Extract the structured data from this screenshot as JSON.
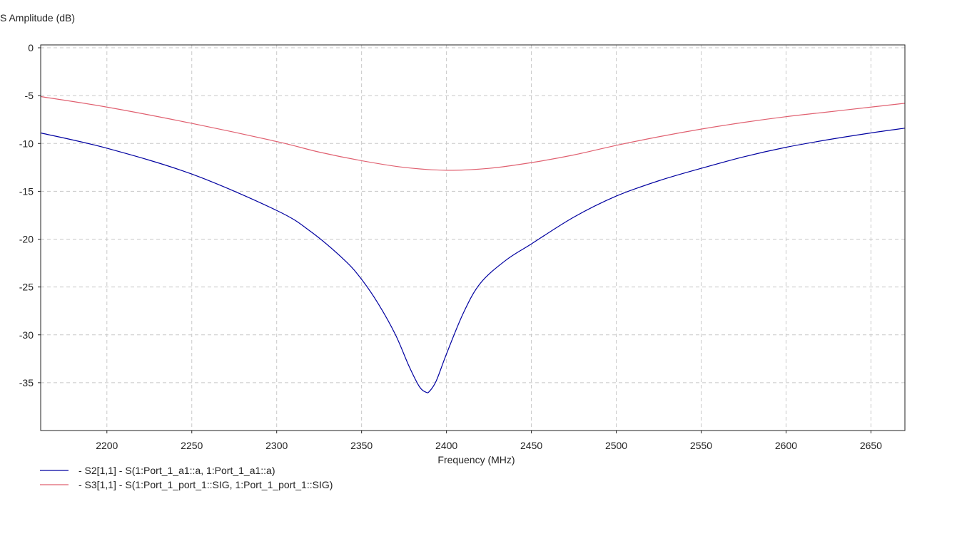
{
  "chart_data": {
    "type": "line",
    "xlabel": "Frequency (MHz)",
    "ylabel": "S Amplitude (dB)",
    "xlim": [
      2161,
      2670
    ],
    "ylim": [
      -40,
      0.3
    ],
    "xticks": [
      2200,
      2250,
      2300,
      2350,
      2400,
      2450,
      2500,
      2550,
      2600,
      2650
    ],
    "yticks": [
      0,
      -5,
      -10,
      -15,
      -20,
      -25,
      -30,
      -35
    ],
    "grid": true,
    "legend_position": "bottom-left",
    "series": [
      {
        "name": "S2[1,1] - S(1:Port_1_a1::a, 1:Port_1_a1::a)",
        "color": "#0000a0",
        "x": [
          2161,
          2200,
          2250,
          2300,
          2320,
          2340,
          2350,
          2360,
          2370,
          2378,
          2384,
          2388,
          2390,
          2394,
          2400,
          2410,
          2420,
          2435,
          2450,
          2475,
          2500,
          2525,
          2550,
          2575,
          2600,
          2625,
          2650,
          2670
        ],
        "y": [
          -8.9,
          -10.5,
          -13.2,
          -17.0,
          -19.2,
          -22.2,
          -24.2,
          -26.8,
          -30.0,
          -33.3,
          -35.4,
          -36.0,
          -35.9,
          -34.8,
          -32.0,
          -27.7,
          -24.6,
          -22.2,
          -20.5,
          -17.7,
          -15.5,
          -13.9,
          -12.6,
          -11.4,
          -10.4,
          -9.6,
          -8.9,
          -8.4
        ]
      },
      {
        "name": "S3[1,1] - S(1:Port_1_port_1::SIG, 1:Port_1_port_1::SIG)",
        "color": "#e06070",
        "x": [
          2161,
          2200,
          2250,
          2300,
          2325,
          2350,
          2375,
          2400,
          2425,
          2450,
          2475,
          2500,
          2525,
          2550,
          2575,
          2600,
          2625,
          2650,
          2670
        ],
        "y": [
          -5.1,
          -6.2,
          -7.9,
          -9.8,
          -10.9,
          -11.8,
          -12.5,
          -12.8,
          -12.6,
          -12.0,
          -11.2,
          -10.2,
          -9.3,
          -8.5,
          -7.8,
          -7.2,
          -6.7,
          -6.2,
          -5.8
        ]
      }
    ]
  }
}
